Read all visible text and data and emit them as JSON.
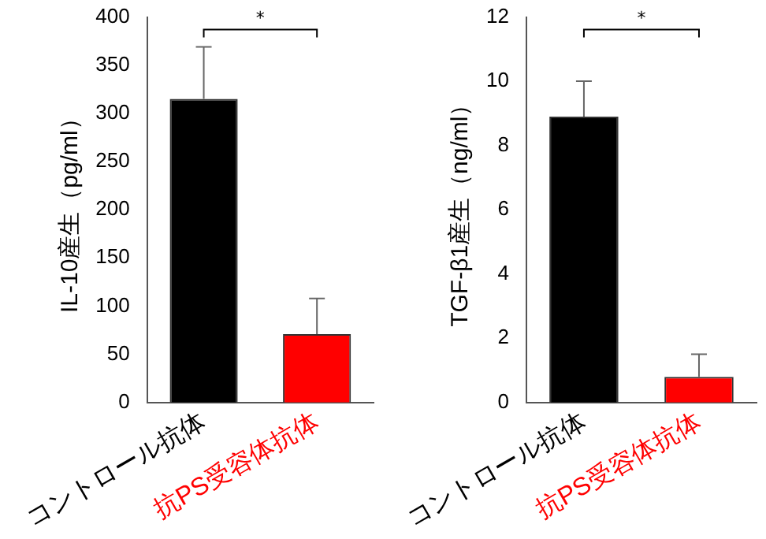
{
  "chart_data": [
    {
      "type": "bar",
      "ylabel": "IL-10産生（pg/ml）",
      "categories": [
        "コントロール抗体",
        "抗PS受容体抗体"
      ],
      "values": [
        315,
        71
      ],
      "colors": [
        "#000000",
        "#ff0000"
      ],
      "errors": [
        [
          315,
          369
        ],
        [
          71,
          108
        ]
      ],
      "ylim": [
        0,
        400
      ],
      "yticks": [
        0,
        50,
        100,
        150,
        200,
        250,
        300,
        350,
        400
      ],
      "grid": false,
      "legend": false,
      "annotations": [
        "*"
      ]
    },
    {
      "type": "bar",
      "ylabel": "TGF-β1産生（ng/ml）",
      "categories": [
        "コントロール抗体",
        "抗PS受容体抗体"
      ],
      "values": [
        8.9,
        0.8
      ],
      "colors": [
        "#000000",
        "#ff0000"
      ],
      "errors": [
        [
          8.9,
          10.0
        ],
        [
          0.8,
          1.5
        ]
      ],
      "ylim": [
        0,
        12
      ],
      "yticks": [
        0,
        2,
        4,
        6,
        8,
        10,
        12
      ],
      "grid": false,
      "legend": false,
      "annotations": [
        "*"
      ]
    }
  ]
}
